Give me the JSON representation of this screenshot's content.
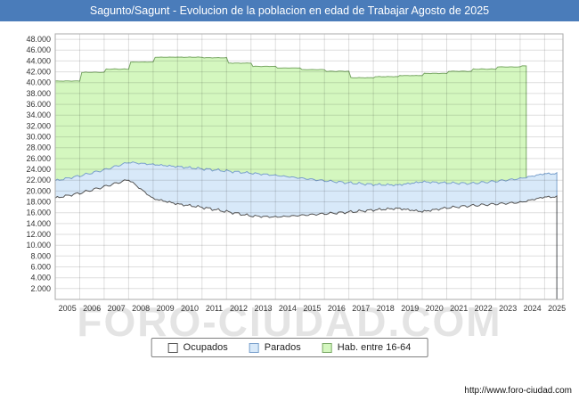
{
  "title": "Sagunto/Sagunt - Evolucion de la poblacion en edad de Trabajar Agosto de 2025",
  "watermark": "FORO-CIUDAD.COM",
  "footer": {
    "url_label": "http://www.foro-ciudad.com"
  },
  "colors": {
    "titlebar_bg": "#4a7cba",
    "titlebar_text": "#ffffff",
    "grid": "rgba(0,0,0,0.13)",
    "plot_border": "#aaaaaa",
    "tick_text": "#333333",
    "watermark_text": "#e4e4e4",
    "footer_text": "#111111"
  },
  "legend": {
    "items": [
      {
        "label": "Ocupados",
        "fill": "#ffffff",
        "stroke": "#555555"
      },
      {
        "label": "Parados",
        "fill": "#d8e9f9",
        "stroke": "#7aa0cc"
      },
      {
        "label": "Hab. entre 16-64",
        "fill": "#d4f7bf",
        "stroke": "#7aa866"
      }
    ]
  },
  "chart_data": {
    "type": "area",
    "title": "Sagunto/Sagunt - Evolucion de la poblacion en edad de Trabajar Agosto de 2025",
    "xlabel": "",
    "ylabel": "",
    "legend_position": "bottom",
    "grid": true,
    "ylim": [
      0,
      48000
    ],
    "ytick_step": 2000,
    "x_start": 2005,
    "x_end": 2025.75,
    "years": [
      2005,
      2006,
      2007,
      2008,
      2009,
      2010,
      2011,
      2012,
      2013,
      2014,
      2015,
      2016,
      2017,
      2018,
      2019,
      2020,
      2021,
      2022,
      2023,
      2024,
      2025
    ],
    "x_ticks": [
      "2005",
      "2006",
      "2007",
      "2008",
      "2009",
      "2010",
      "2011",
      "2012",
      "2013",
      "2014",
      "2015",
      "2016",
      "2017",
      "2018",
      "2019",
      "2020",
      "2021",
      "2022",
      "2023",
      "2024",
      "2025"
    ],
    "series": [
      {
        "name": "Hab. entre 16-64",
        "interp": "step",
        "x_first": 2005,
        "x_last": 2024.25,
        "jitter": 50,
        "fill": "#d4f7bf",
        "stroke": "#7aa866",
        "values": [
          40300,
          41900,
          42500,
          43800,
          44700,
          44700,
          44600,
          43600,
          43000,
          42700,
          42400,
          42100,
          40900,
          41100,
          41300,
          41700,
          42100,
          42500,
          42900,
          43100
        ]
      },
      {
        "name": "Parados",
        "interp": "linear",
        "x_first": 2005,
        "x_last": 2025.58,
        "jitter": 280,
        "fill": "#d8e9f9",
        "stroke": "#7aa0cc",
        "values": [
          21900,
          22800,
          23900,
          25300,
          24900,
          24500,
          24100,
          23700,
          23300,
          22900,
          22400,
          21900,
          21500,
          21200,
          21100,
          21700,
          21500,
          21400,
          21800,
          22300,
          23200
        ]
      },
      {
        "name": "Ocupados",
        "interp": "linear",
        "x_first": 2005,
        "x_last": 2025.58,
        "jitter": 300,
        "fill": "#ffffff",
        "stroke": "#555555",
        "values": [
          18700,
          19600,
          20800,
          22100,
          18600,
          17600,
          17000,
          16200,
          15400,
          15200,
          15500,
          15800,
          16100,
          16500,
          16800,
          16200,
          16900,
          17300,
          17600,
          17900,
          18900
        ]
      }
    ]
  }
}
